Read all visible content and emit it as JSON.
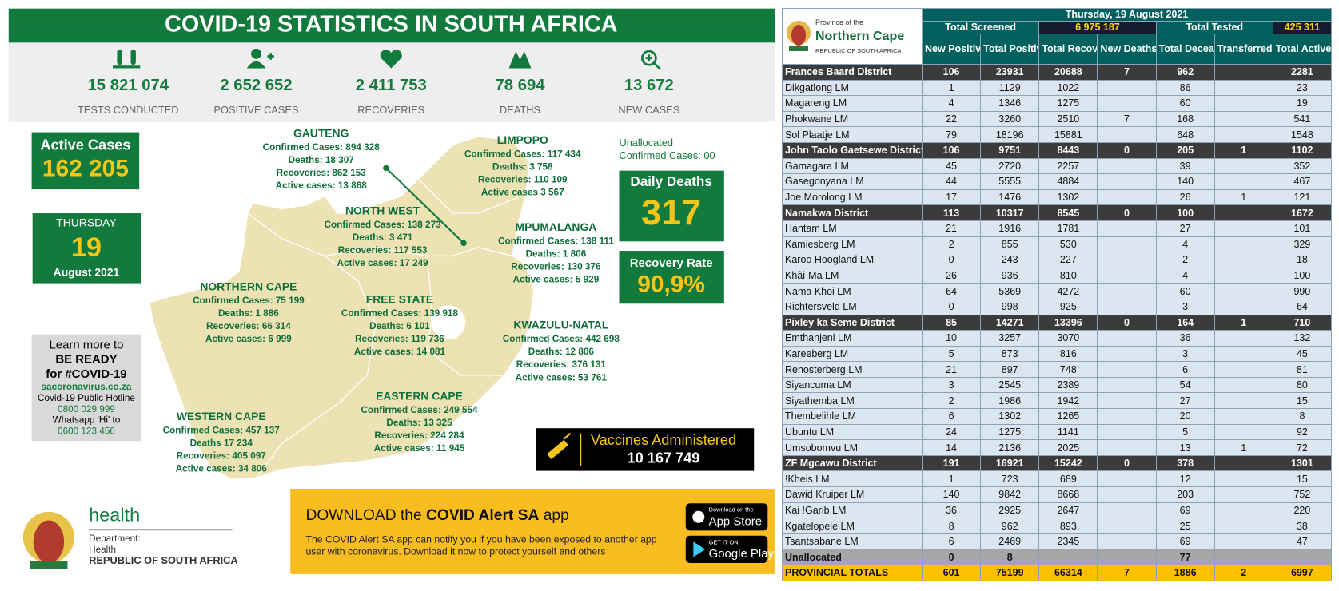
{
  "header": {
    "title": "COVID-19 STATISTICS IN SOUTH AFRICA"
  },
  "stats": [
    {
      "value": "15 821 074",
      "label": "TESTS CONDUCTED"
    },
    {
      "value": "2 652 652",
      "label": "POSITIVE CASES"
    },
    {
      "value": "2 411 753",
      "label": "RECOVERIES"
    },
    {
      "value": "78 694",
      "label": "DEATHS"
    },
    {
      "value": "13 672",
      "label": "NEW CASES"
    }
  ],
  "active_cases": {
    "label": "Active Cases",
    "value": "162 205"
  },
  "date": {
    "weekday": "THURSDAY",
    "day": "19",
    "month_year": "August 2021"
  },
  "learn_more": {
    "line1": "Learn more to",
    "line2": "BE READY",
    "line3": "for #COVID-19",
    "website": "sacoronavirus.co.za",
    "hotline_label": "Covid-19 Public Hotline",
    "hotline": "0800 029 999",
    "whatsapp_label": "Whatsapp 'Hi' to",
    "whatsapp": "0600 123 456"
  },
  "unallocated": {
    "label": "Unallocated",
    "cases": "Confirmed Cases: 00"
  },
  "daily_deaths": {
    "label": "Daily Deaths",
    "value": "317"
  },
  "recovery_rate": {
    "label": "Recovery Rate",
    "value": "90,9%"
  },
  "provinces": [
    {
      "name": "GAUTENG",
      "lines": [
        "Confirmed Cases: 894 328",
        "Deaths: 18 307",
        "Recoveries: 862 153",
        "Active cases: 13 868"
      ]
    },
    {
      "name": "LIMPOPO",
      "lines": [
        "Confirmed Cases: 117 434",
        "Deaths: 3 758",
        "Recoveries: 110 109",
        "Active cases 3 567"
      ]
    },
    {
      "name": "NORTH WEST",
      "lines": [
        "Confirmed Cases: 138 273",
        "Deaths: 3 471",
        "Recoveries: 117 553",
        "Active cases: 17 249"
      ]
    },
    {
      "name": "MPUMALANGA",
      "lines": [
        "Confirmed Cases: 138 111",
        "Deaths:  1 806",
        "Recoveries: 130 376",
        "Active cases: 5 929"
      ]
    },
    {
      "name": "NORTHERN CAPE",
      "lines": [
        "Confirmed Cases: 75 199",
        "Deaths: 1 886",
        "Recoveries: 66 314",
        "Active cases: 6 999"
      ]
    },
    {
      "name": "FREE STATE",
      "lines": [
        "Confirmed Cases: 139 918",
        "Deaths: 6 101",
        "Recoveries:  119 736",
        "Active cases: 14 081"
      ]
    },
    {
      "name": "KWAZULU-NATAL",
      "lines": [
        "Confirmed Cases: 442 698",
        "Deaths: 12 806",
        "Recoveries: 376 131",
        "Active cases: 53 761"
      ]
    },
    {
      "name": "EASTERN CAPE",
      "lines": [
        "Confirmed Cases: 249 554",
        "Deaths: 13 325",
        "Recoveries: 224 284",
        "Active cases: 11 945"
      ]
    },
    {
      "name": "WESTERN CAPE",
      "lines": [
        "Confirmed Cases: 457 137",
        "Deaths 17 234",
        "Recoveries: 405 097",
        "Active cases: 34 806"
      ]
    }
  ],
  "vaccines": {
    "label": "Vaccines Administered",
    "value": "10 167 749"
  },
  "health": {
    "name": "health",
    "department": "Department:",
    "unit": "Health",
    "country": "REPUBLIC OF SOUTH AFRICA"
  },
  "app_banner": {
    "download": "DOWNLOAD the",
    "app_name": "COVID Alert SA",
    "suffix": "app",
    "description_lines": [
      "The COVID Alert SA app can notify you if you have been exposed to another app",
      "user with coronavirus. Download it now to protect yourself and others"
    ],
    "app_store_small": "Download on the",
    "app_store": "App Store",
    "google_small": "GET IT ON",
    "google": "Google Play"
  },
  "table": {
    "province_of": "Province of the",
    "province": "Northern Cape",
    "country": "REPUBLIC OF SOUTH AFRICA",
    "date": "Thursday, 19 August 2021",
    "total_screened_label": "Total Screened",
    "total_screened": "6 975 187",
    "total_tested_label": "Total Tested",
    "total_tested": "425 311",
    "columns": [
      "New Positive",
      "Total Positive",
      "Total Recovered",
      "New Deaths",
      "Total Deceased",
      "Transferred out",
      "Total Active"
    ],
    "districts": [
      {
        "row": [
          "Frances Baard District",
          106,
          23931,
          20688,
          7,
          962,
          null,
          2281
        ],
        "municipalities": [
          [
            "Dikgatlong LM",
            1,
            1129,
            1022,
            null,
            86,
            null,
            23
          ],
          [
            "Magareng LM",
            4,
            1346,
            1275,
            null,
            60,
            null,
            19
          ],
          [
            "Phokwane LM",
            22,
            3260,
            2510,
            7,
            168,
            null,
            541
          ],
          [
            "Sol Plaatje LM",
            79,
            18196,
            15881,
            null,
            648,
            null,
            1548
          ]
        ]
      },
      {
        "row": [
          "John Taolo Gaetsewe District",
          106,
          9751,
          8443,
          0,
          205,
          1,
          1102
        ],
        "municipalities": [
          [
            "Gamagara LM",
            45,
            2720,
            2257,
            null,
            39,
            null,
            352
          ],
          [
            "Gasegonyana LM",
            44,
            5555,
            4884,
            null,
            140,
            null,
            467
          ],
          [
            "Joe Morolong LM",
            17,
            1476,
            1302,
            null,
            26,
            1,
            121
          ]
        ]
      },
      {
        "row": [
          "Namakwa District",
          113,
          10317,
          8545,
          0,
          100,
          null,
          1672
        ],
        "municipalities": [
          [
            "Hantam LM",
            21,
            1916,
            1781,
            null,
            27,
            null,
            101
          ],
          [
            "Kamiesberg LM",
            2,
            855,
            530,
            null,
            4,
            null,
            329
          ],
          [
            "Karoo Hoogland LM",
            0,
            243,
            227,
            null,
            2,
            null,
            18
          ],
          [
            "Khâi-Ma LM",
            26,
            936,
            810,
            null,
            4,
            null,
            100
          ],
          [
            "Nama Khoi LM",
            64,
            5369,
            4272,
            null,
            60,
            null,
            990
          ],
          [
            "Richtersveld LM",
            0,
            998,
            925,
            null,
            3,
            null,
            64
          ]
        ]
      },
      {
        "row": [
          "Pixley ka Seme District",
          85,
          14271,
          13396,
          0,
          164,
          1,
          710
        ],
        "municipalities": [
          [
            "Emthanjeni LM",
            10,
            3257,
            3070,
            null,
            36,
            null,
            132
          ],
          [
            "Kareeberg LM",
            5,
            873,
            816,
            null,
            3,
            null,
            45
          ],
          [
            "Renosterberg LM",
            21,
            897,
            748,
            null,
            6,
            null,
            81
          ],
          [
            "Siyancuma LM",
            3,
            2545,
            2389,
            null,
            54,
            null,
            80
          ],
          [
            "Siyathemba LM",
            2,
            1986,
            1942,
            null,
            27,
            null,
            15
          ],
          [
            "Thembelihle LM",
            6,
            1302,
            1265,
            null,
            20,
            null,
            8
          ],
          [
            "Ubuntu LM",
            24,
            1275,
            1141,
            null,
            5,
            null,
            92
          ],
          [
            "Umsobomvu LM",
            14,
            2136,
            2025,
            null,
            13,
            1,
            72
          ]
        ]
      },
      {
        "row": [
          "ZF Mgcawu District",
          191,
          16921,
          15242,
          0,
          378,
          null,
          1301
        ],
        "municipalities": [
          [
            "!Kheis LM",
            1,
            723,
            689,
            null,
            12,
            null,
            15
          ],
          [
            "Dawid Kruiper LM",
            140,
            9842,
            8668,
            null,
            203,
            null,
            752
          ],
          [
            "Kai !Garib LM",
            36,
            2925,
            2647,
            null,
            69,
            null,
            220
          ],
          [
            "Kgatelopele LM",
            8,
            962,
            893,
            null,
            25,
            null,
            38
          ],
          [
            "Tsantsabane LM",
            6,
            2469,
            2345,
            null,
            69,
            null,
            47
          ]
        ]
      }
    ],
    "unallocated": [
      "Unallocated",
      0,
      8,
      null,
      null,
      77,
      null,
      null
    ],
    "totals": [
      "PROVINCIAL TOTALS",
      601,
      75199,
      66314,
      7,
      1886,
      2,
      6997
    ]
  }
}
